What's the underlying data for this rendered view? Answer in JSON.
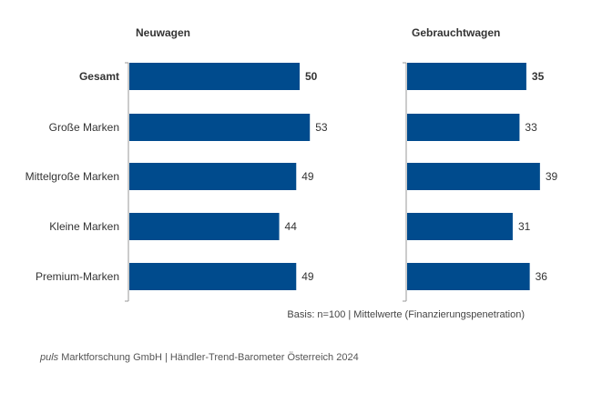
{
  "chart_data": {
    "type": "bar",
    "orientation": "horizontal",
    "categories": [
      "Gesamt",
      "Große Marken",
      "Mittelgroße Marken",
      "Kleine Marken",
      "Premium-Marken"
    ],
    "series": [
      {
        "name": "Neuwagen",
        "values": [
          50,
          53,
          49,
          44,
          49
        ]
      },
      {
        "name": "Gebrauchtwagen",
        "values": [
          35,
          33,
          39,
          31,
          36
        ]
      }
    ],
    "highlight_category": "Gesamt",
    "bar_color": "#004B8D",
    "grid": false,
    "legend": "none"
  },
  "basis_note": "Basis: n=100 | Mittelwerte (Finanzierungspenetration)",
  "footer": {
    "brand": "puls",
    "text": " Marktforschung GmbH | Händler-Trend-Barometer Österreich 2024"
  }
}
